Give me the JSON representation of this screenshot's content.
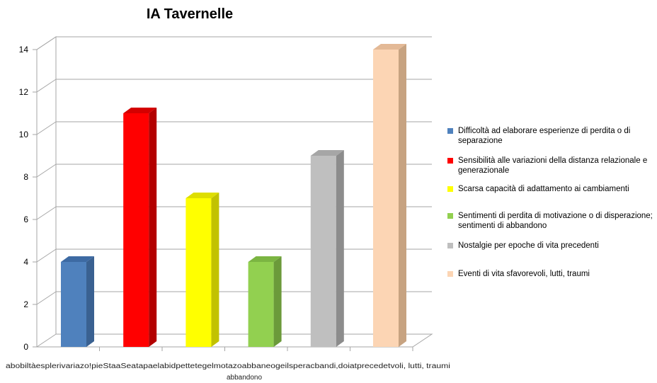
{
  "chart_data": {
    "type": "bar",
    "title": "IA Tavernelle",
    "xlabel": "",
    "ylabel": "",
    "ylim": [
      0,
      14
    ],
    "yticks": [
      "0",
      "2",
      "4",
      "6",
      "8",
      "10",
      "12",
      "14"
    ],
    "grid": true,
    "legend_position": "right",
    "categories": [
      "Difficoltà ad elaborare esperienze di perdita o di separazione",
      "Sensibilità alle variazioni della distanza relazionale e generazionale",
      "Scarsa capacità di adattamento ai cambiamenti",
      "Sentimenti di perdita di motivazione o di disperazione; sentimenti di abbandono",
      "Nostalgie per epoche di vita precedenti",
      "Eventi di vita sfavorevoli, lutti, traumi"
    ],
    "values": [
      4,
      11,
      7,
      4,
      9,
      14
    ],
    "colors": [
      "#4f81bd",
      "#ff0000",
      "#ffff00",
      "#92d050",
      "#bfbfbf",
      "#fcd5b4"
    ],
    "side_colors": [
      "#3a6191",
      "#b30000",
      "#c2c200",
      "#6b9a3a",
      "#8c8c8c",
      "#c7a381"
    ],
    "top_colors": [
      "#3d6aa3",
      "#d40000",
      "#dede00",
      "#7bb542",
      "#a6a6a6",
      "#e3b996"
    ],
    "x_axis_overlapping_text": "abobiltàesplerivariazo!pieStaaSeatapaelabidpettetegelmotazoabbaneogeilsperacbandi,doiatprecedetvoli, lutti, traumi",
    "x_axis_second_line": "abbandono"
  }
}
